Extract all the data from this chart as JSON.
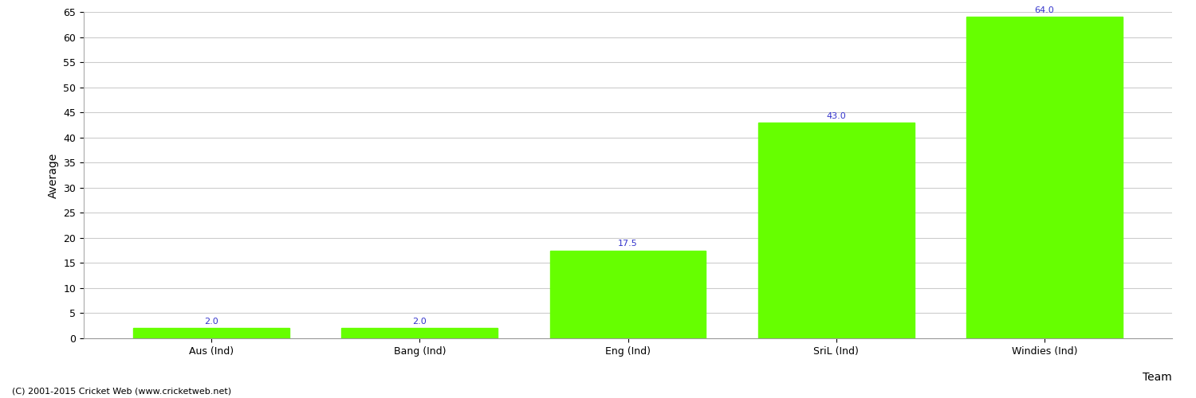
{
  "categories": [
    "Aus (Ind)",
    "Bang (Ind)",
    "Eng (Ind)",
    "SriL (Ind)",
    "Windies (Ind)"
  ],
  "values": [
    2.0,
    2.0,
    17.5,
    43.0,
    64.0
  ],
  "bar_color": "#66ff00",
  "bar_edge_color": "#66ff00",
  "value_label_color": "#3333cc",
  "xlabel": "Team",
  "ylabel": "Average",
  "ylim": [
    0,
    65
  ],
  "yticks": [
    0,
    5,
    10,
    15,
    20,
    25,
    30,
    35,
    40,
    45,
    50,
    55,
    60,
    65
  ],
  "grid_color": "#cccccc",
  "background_color": "#ffffff",
  "footer_text": "(C) 2001-2015 Cricket Web (www.cricketweb.net)",
  "value_fontsize": 8,
  "axis_label_fontsize": 10,
  "tick_fontsize": 9,
  "footer_fontsize": 8
}
